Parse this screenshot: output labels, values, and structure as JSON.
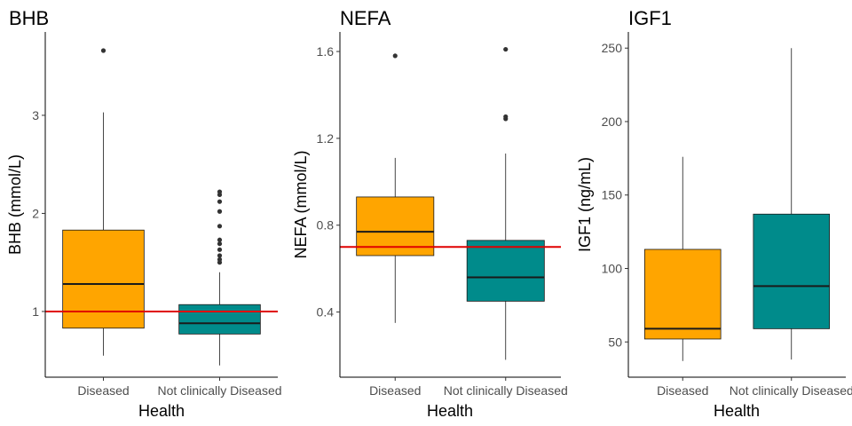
{
  "chart_data": [
    {
      "type": "boxplot",
      "title": "BHB",
      "xlabel": "Health",
      "ylabel": "BHB (mmol/L)",
      "categories": [
        "Diseased",
        "Not clinically Diseased"
      ],
      "fill_colors": [
        "#FFA500",
        "#008B8B"
      ],
      "ylim": [
        0.33,
        3.85
      ],
      "yticks": [
        1,
        2,
        3
      ],
      "yticklabels": [
        "1",
        "2",
        "3"
      ],
      "reference_line": 1.0,
      "reference_color": "#E00000",
      "boxes": [
        {
          "category": "Diseased",
          "min": 0.55,
          "q1": 0.83,
          "median": 1.28,
          "q3": 1.83,
          "max": 3.03,
          "outliers": [
            3.66
          ]
        },
        {
          "category": "Not clinically Diseased",
          "min": 0.45,
          "q1": 0.77,
          "median": 0.88,
          "q3": 1.07,
          "max": 1.4,
          "outliers": [
            1.5,
            1.53,
            1.57,
            1.63,
            1.69,
            1.73,
            1.87,
            2.02,
            2.12,
            2.19,
            2.22
          ]
        }
      ]
    },
    {
      "type": "boxplot",
      "title": "NEFA",
      "xlabel": "Health",
      "ylabel": "NEFA (mmol/L)",
      "categories": [
        "Diseased",
        "Not clinically Diseased"
      ],
      "fill_colors": [
        "#FFA500",
        "#008B8B"
      ],
      "ylim": [
        0.1,
        1.69
      ],
      "yticks": [
        0.4,
        0.8,
        1.2,
        1.6
      ],
      "yticklabels": [
        "0.4",
        "0.8",
        "1.2",
        "1.6"
      ],
      "reference_line": 0.7,
      "reference_color": "#E00000",
      "boxes": [
        {
          "category": "Diseased",
          "min": 0.35,
          "q1": 0.66,
          "median": 0.77,
          "q3": 0.93,
          "max": 1.11,
          "outliers": [
            1.58
          ]
        },
        {
          "category": "Not clinically Diseased",
          "min": 0.18,
          "q1": 0.45,
          "median": 0.56,
          "q3": 0.73,
          "max": 1.13,
          "outliers": [
            1.29,
            1.3,
            1.61
          ]
        }
      ]
    },
    {
      "type": "boxplot",
      "title": "IGF1",
      "xlabel": "Health",
      "ylabel": "IGF1 (ng/mL)",
      "categories": [
        "Diseased",
        "Not clinically Diseased"
      ],
      "fill_colors": [
        "#FFA500",
        "#008B8B"
      ],
      "ylim": [
        26,
        261
      ],
      "yticks": [
        50,
        100,
        150,
        200,
        250
      ],
      "yticklabels": [
        "50",
        "100",
        "150",
        "200",
        "250"
      ],
      "boxes": [
        {
          "category": "Diseased",
          "min": 37,
          "q1": 52,
          "median": 59,
          "q3": 113,
          "max": 176,
          "outliers": []
        },
        {
          "category": "Not clinically Diseased",
          "min": 38,
          "q1": 59,
          "median": 88,
          "q3": 137,
          "max": 250,
          "outliers": []
        }
      ]
    }
  ]
}
